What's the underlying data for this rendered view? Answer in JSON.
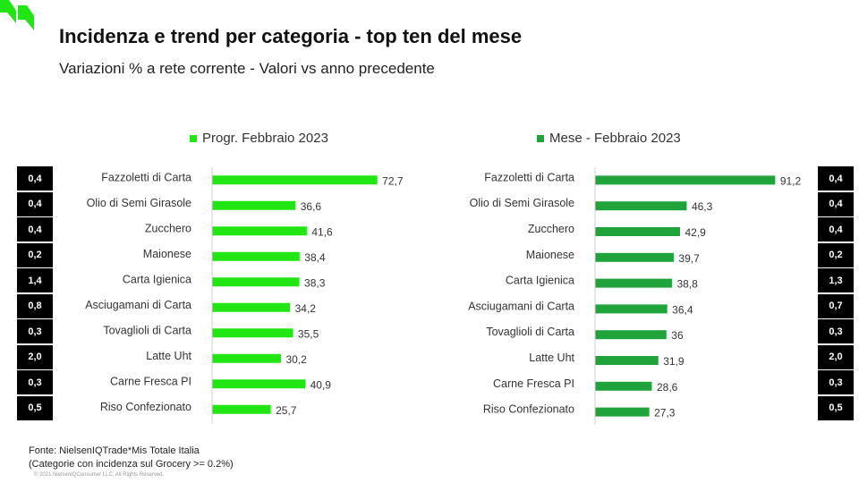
{
  "header": {
    "title": "Incidenza e trend per categoria - top ten del mese",
    "subtitle": "Variazioni % a rete corrente - Valori vs anno precedente"
  },
  "colors": {
    "left_series": "#22e614",
    "right_series": "#1fa33a",
    "badge_bg": "#000000",
    "badge_text": "#ffffff",
    "axis": "#d0d0d0",
    "logo": "#22e614"
  },
  "left_badges": [
    "0,4",
    "0,4",
    "0,4",
    "0,2",
    "1,4",
    "0,8",
    "0,3",
    "2,0",
    "0,3",
    "0,5"
  ],
  "right_badges": [
    "0,4",
    "0,4",
    "0,4",
    "0,2",
    "1,3",
    "0,7",
    "0,3",
    "2,0",
    "0,3",
    "0,5"
  ],
  "chart_data": [
    {
      "type": "bar",
      "orientation": "horizontal",
      "legend": "Progr. Febbraio 2023",
      "categories": [
        "Fazzoletti di Carta",
        "Olio di Semi Girasole",
        "Zucchero",
        "Maionese",
        "Carta Igienica",
        "Asciugamani di Carta",
        "Tovaglioli di Carta",
        "Latte Uht",
        "Carne Fresca PI",
        "Riso Confezionato"
      ],
      "values": [
        72.7,
        36.6,
        41.6,
        38.4,
        38.3,
        34.2,
        35.5,
        30.2,
        40.9,
        25.7
      ],
      "value_labels": [
        "72,7",
        "36,6",
        "41,6",
        "38,4",
        "38,3",
        "34,2",
        "35,5",
        "30,2",
        "40,9",
        "25,7"
      ],
      "xlim": [
        0,
        75
      ]
    },
    {
      "type": "bar",
      "orientation": "horizontal",
      "legend": "Mese - Febbraio 2023",
      "categories": [
        "Fazzoletti di Carta",
        "Olio di Semi Girasole",
        "Zucchero",
        "Maionese",
        "Carta Igienica",
        "Asciugamani di Carta",
        "Tovaglioli di Carta",
        "Latte Uht",
        "Carne Fresca PI",
        "Riso Confezionato"
      ],
      "values": [
        91.2,
        46.3,
        42.9,
        39.7,
        38.8,
        36.4,
        36.0,
        31.9,
        28.6,
        27.3
      ],
      "value_labels": [
        "91,2",
        "46,3",
        "42,9",
        "39,7",
        "38,8",
        "36,4",
        "36",
        "31,9",
        "28,6",
        "27,3"
      ],
      "xlim": [
        0,
        94
      ]
    }
  ],
  "footer": {
    "source": "Fonte: NielsenIQTrade*Mis Totale Italia",
    "note": "(Categorie con incidenza sul Grocery >= 0.2%)",
    "copyright": "© 2021 NielsenIQConsumer LLC. All Rights Reserved."
  }
}
